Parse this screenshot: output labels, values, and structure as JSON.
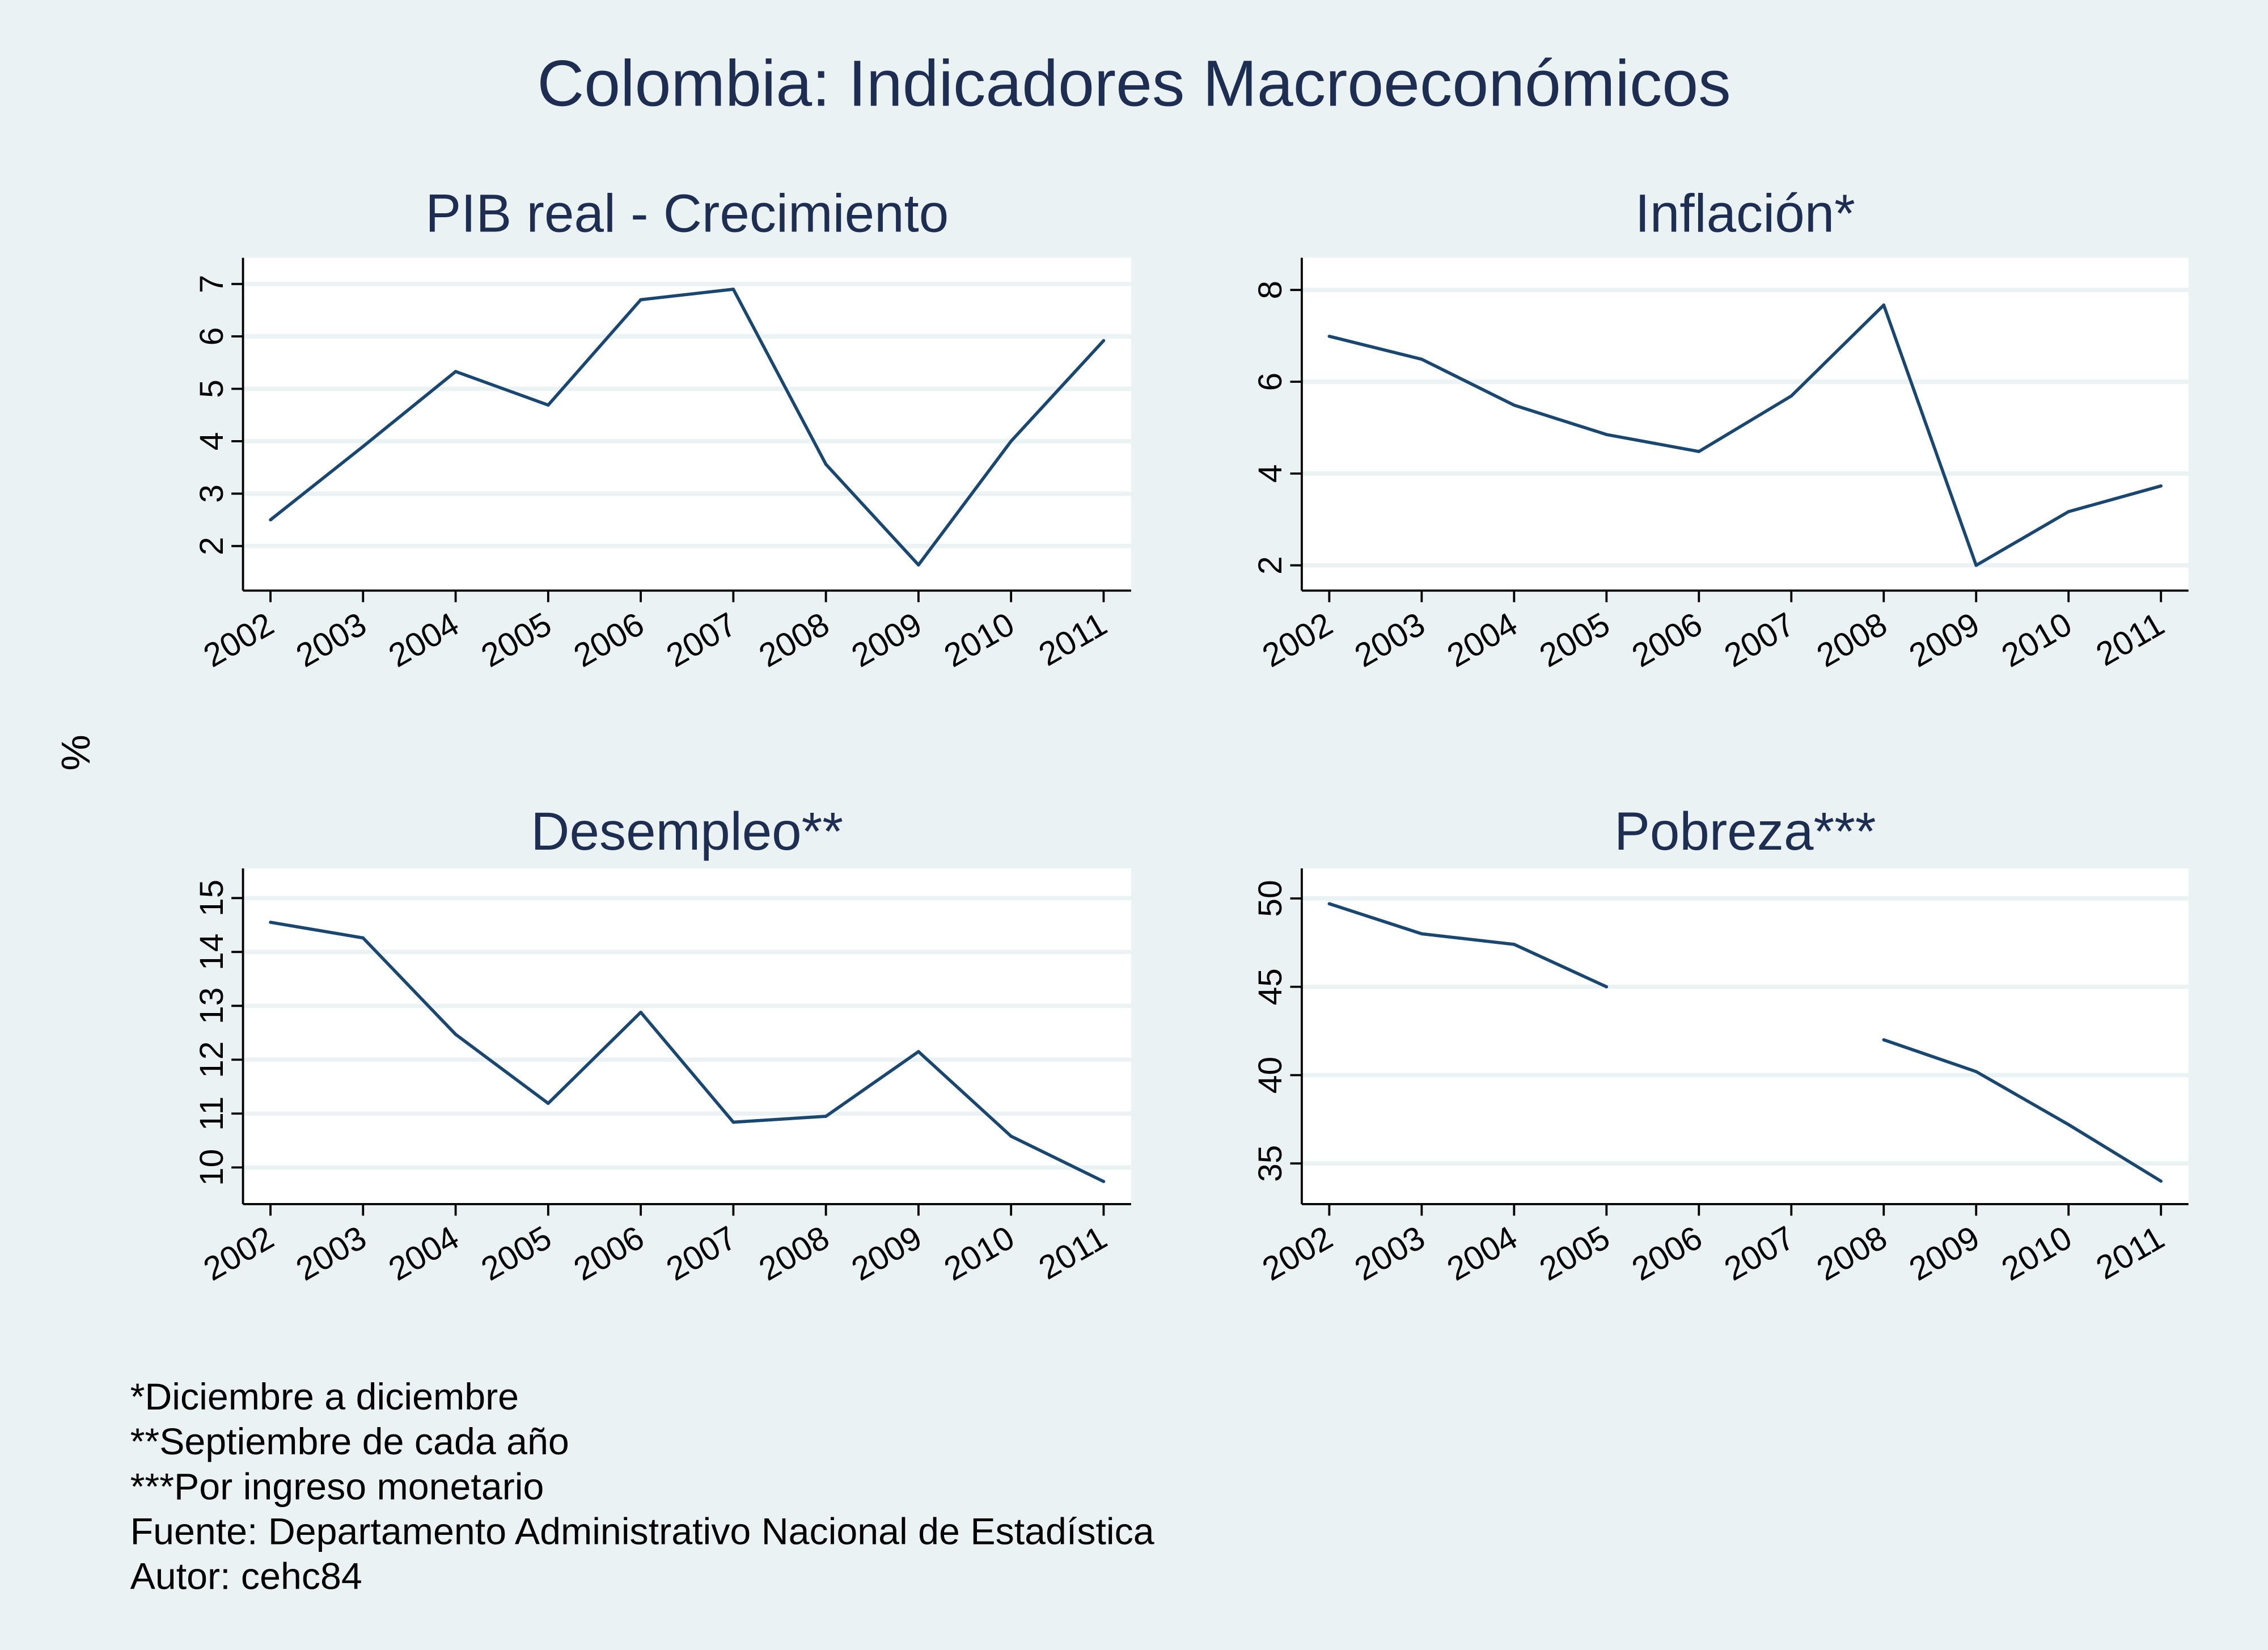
{
  "title": "Colombia: Indicadores Macroeconómicos",
  "ylabel": "%",
  "footnotes": [
    "*Diciembre a diciembre",
    "**Septiembre de cada año",
    "***Por ingreso monetario",
    "Fuente: Departamento Administrativo Nacional de Estadística",
    "Autor: cehc84"
  ],
  "colors": {
    "background": "#eaf2f3",
    "line": "#1a476f",
    "title": "#1e2d52",
    "grid": "#eaf2f3"
  },
  "chart_data": [
    {
      "type": "line",
      "title": "PIB real - Crecimiento",
      "x": [
        2002,
        2003,
        2004,
        2005,
        2006,
        2007,
        2008,
        2009,
        2010,
        2011
      ],
      "values": [
        2.5,
        3.9,
        5.33,
        4.69,
        6.7,
        6.9,
        3.56,
        1.64,
        4.0,
        5.92
      ],
      "yticks": [
        2,
        3,
        4,
        5,
        6,
        7
      ],
      "ylim": [
        1.15,
        7.5
      ],
      "grid": true
    },
    {
      "type": "line",
      "title": "Inflación*",
      "x": [
        2002,
        2003,
        2004,
        2005,
        2006,
        2007,
        2008,
        2009,
        2010,
        2011
      ],
      "values": [
        6.99,
        6.49,
        5.49,
        4.85,
        4.48,
        5.69,
        7.67,
        2.0,
        3.17,
        3.73
      ],
      "yticks": [
        2,
        4,
        6,
        8
      ],
      "ylim": [
        1.45,
        8.7
      ],
      "grid": true
    },
    {
      "type": "line",
      "title": "Desempleo**",
      "x": [
        2002,
        2003,
        2004,
        2005,
        2006,
        2007,
        2008,
        2009,
        2010,
        2011
      ],
      "values": [
        14.55,
        14.26,
        12.47,
        11.19,
        12.88,
        10.84,
        10.95,
        12.15,
        10.58,
        9.74
      ],
      "yticks": [
        10,
        11,
        12,
        13,
        14,
        15
      ],
      "ylim": [
        9.32,
        15.55
      ],
      "grid": true
    },
    {
      "type": "line",
      "title": "Pobreza***",
      "x": [
        2002,
        2003,
        2004,
        2005,
        2006,
        2007,
        2008,
        2009,
        2010,
        2011
      ],
      "values": [
        49.7,
        48.0,
        47.4,
        45.0,
        null,
        null,
        42.0,
        40.2,
        37.2,
        34.0
      ],
      "yticks": [
        35,
        40,
        45,
        50
      ],
      "ylim": [
        32.7,
        51.7
      ],
      "grid": true
    }
  ]
}
